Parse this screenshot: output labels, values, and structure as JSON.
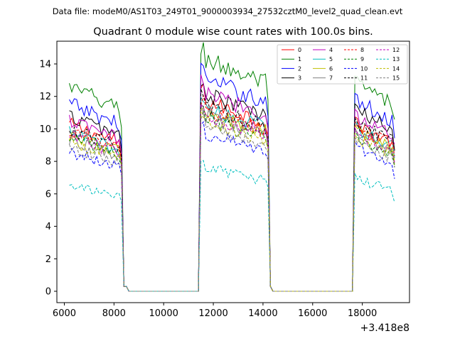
{
  "suptitle": "Data file: modeM0/AS1T03_249T01_9000003934_27532cztM0_level2_quad_clean.evt",
  "offset_label": "+3.418e8",
  "chart_data": {
    "type": "line",
    "title": "Quadrant 0 module wise count rates with 100.0s bins.",
    "xlabel": "",
    "ylabel": "",
    "xlim": [
      5700,
      19900
    ],
    "ylim": [
      -0.7,
      15.4
    ],
    "xticks": [
      6000,
      8000,
      10000,
      12000,
      14000,
      16000,
      18000
    ],
    "xtick_labels": [
      "6000",
      "8000",
      "10000",
      "12000",
      "14000",
      "16000",
      "18000"
    ],
    "yticks": [
      0,
      2,
      4,
      6,
      8,
      10,
      12,
      14
    ],
    "ytick_labels": [
      "0",
      "2",
      "4",
      "6",
      "8",
      "10",
      "12",
      "14"
    ],
    "legend_position": "upper right",
    "segments": [
      [
        6200,
        8300
      ],
      [
        11500,
        14200
      ],
      [
        17700,
        19300
      ]
    ],
    "gaps": [
      [
        8500,
        11400
      ],
      [
        14300,
        17600
      ]
    ],
    "series": [
      {
        "name": "0",
        "color": "#ff0000",
        "dashed": false,
        "levels": [
          9.8,
          11.2,
          9.8
        ]
      },
      {
        "name": "1",
        "color": "#008000",
        "dashed": false,
        "levels": [
          12.0,
          13.7,
          12.2
        ]
      },
      {
        "name": "2",
        "color": "#0000ff",
        "dashed": false,
        "levels": [
          11.0,
          12.5,
          11.2
        ]
      },
      {
        "name": "3",
        "color": "#000000",
        "dashed": false,
        "levels": [
          10.3,
          11.6,
          10.6
        ]
      },
      {
        "name": "4",
        "color": "#bf00bf",
        "dashed": false,
        "levels": [
          10.0,
          11.7,
          10.3
        ]
      },
      {
        "name": "5",
        "color": "#00bfbf",
        "dashed": false,
        "levels": [
          9.3,
          10.8,
          9.6
        ]
      },
      {
        "name": "6",
        "color": "#bfbf00",
        "dashed": false,
        "levels": [
          9.2,
          10.5,
          9.4
        ]
      },
      {
        "name": "7",
        "color": "#808080",
        "dashed": false,
        "levels": [
          8.9,
          10.3,
          9.2
        ]
      },
      {
        "name": "8",
        "color": "#ff0000",
        "dashed": true,
        "levels": [
          9.4,
          10.6,
          9.6
        ]
      },
      {
        "name": "9",
        "color": "#008000",
        "dashed": true,
        "levels": [
          9.0,
          10.1,
          9.1
        ]
      },
      {
        "name": "10",
        "color": "#0000ff",
        "dashed": true,
        "levels": [
          8.2,
          9.3,
          8.5
        ]
      },
      {
        "name": "11",
        "color": "#000000",
        "dashed": true,
        "levels": [
          9.5,
          10.9,
          9.9
        ]
      },
      {
        "name": "12",
        "color": "#bf00bf",
        "dashed": true,
        "levels": [
          9.1,
          10.4,
          9.3
        ]
      },
      {
        "name": "13",
        "color": "#00bfbf",
        "dashed": true,
        "levels": [
          6.2,
          7.3,
          6.6
        ]
      },
      {
        "name": "14",
        "color": "#bfbf00",
        "dashed": true,
        "levels": [
          8.8,
          10.0,
          9.0
        ]
      },
      {
        "name": "15",
        "color": "#808080",
        "dashed": true,
        "levels": [
          8.5,
          9.7,
          8.8
        ]
      }
    ],
    "bin_width_s": 100
  }
}
